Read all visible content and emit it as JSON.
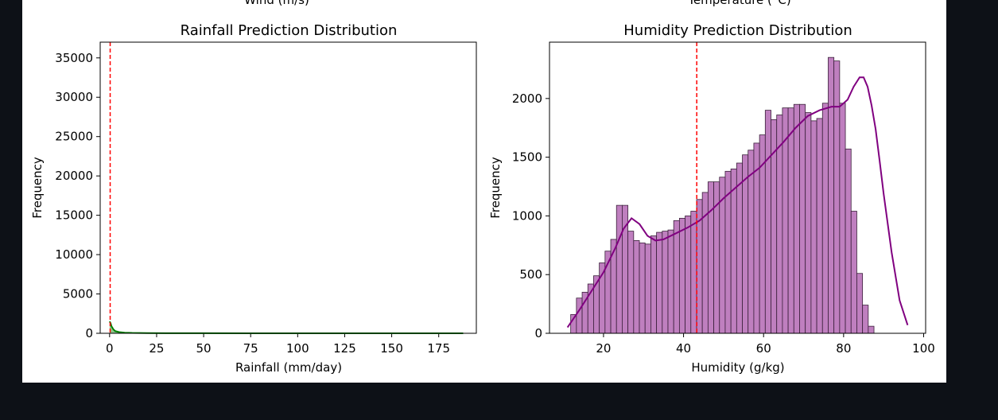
{
  "top_cutoff": {
    "left_label": "Wind (m/s)",
    "right_label": "Temperature (°C)"
  },
  "chart_data": [
    {
      "type": "histogram",
      "title": "Rainfall Prediction Distribution",
      "xlabel": "Rainfall (mm/day)",
      "ylabel": "Frequency",
      "xlim": [
        -5,
        195
      ],
      "ylim": [
        0,
        37000
      ],
      "xticks": [
        0,
        25,
        50,
        75,
        100,
        125,
        150,
        175
      ],
      "yticks": [
        0,
        5000,
        10000,
        15000,
        20000,
        25000,
        30000,
        35000
      ],
      "grid": false,
      "bar_color": "#008000",
      "kde_color": "#008000",
      "mean_line": {
        "x": 0.3,
        "color": "#ff0000",
        "style": "dashed"
      },
      "kde": {
        "x": [
          0,
          0.5,
          1,
          2,
          3,
          5,
          8,
          12,
          20,
          30,
          50,
          75,
          100,
          125,
          150,
          175,
          188
        ],
        "y": [
          1500,
          1300,
          900,
          500,
          280,
          150,
          80,
          45,
          25,
          15,
          8,
          5,
          3,
          2,
          2,
          1,
          1
        ]
      }
    },
    {
      "type": "histogram",
      "title": "Humidity Prediction Distribution",
      "xlabel": "Humidity (g/kg)",
      "ylabel": "Frequency",
      "xlim": [
        6.5,
        100.5
      ],
      "ylim": [
        0,
        2480
      ],
      "xticks": [
        20,
        40,
        60,
        80,
        100
      ],
      "yticks": [
        0,
        500,
        1000,
        1500,
        2000
      ],
      "grid": false,
      "bar_color": "#bf7fbf",
      "bar_edge_color": "#3a1f3a",
      "kde_color": "#800080",
      "mean_line": {
        "x": 43.3,
        "color": "#ff0000",
        "style": "dashed"
      },
      "bins": {
        "start": 11.8,
        "width": 1.43,
        "counts": [
          160,
          300,
          350,
          420,
          490,
          600,
          700,
          800,
          1090,
          1090,
          870,
          790,
          770,
          760,
          830,
          860,
          870,
          880,
          960,
          980,
          1000,
          1040,
          1140,
          1200,
          1290,
          1290,
          1330,
          1380,
          1400,
          1450,
          1520,
          1560,
          1620,
          1690,
          1900,
          1820,
          1860,
          1920,
          1920,
          1950,
          1950,
          1880,
          1810,
          1830,
          1960,
          2350,
          2320,
          1960,
          1570,
          1040,
          510,
          240,
          60
        ]
      },
      "kde": {
        "x": [
          11,
          14,
          17,
          20,
          23,
          25,
          27,
          29,
          31,
          33,
          35,
          38,
          41,
          44,
          47,
          50,
          53,
          56,
          59,
          62,
          65,
          68,
          71,
          74,
          77,
          79,
          81,
          82.5,
          84,
          85,
          86,
          87,
          88,
          89,
          90,
          92,
          94,
          96
        ],
        "y": [
          50,
          200,
          360,
          520,
          730,
          890,
          980,
          930,
          830,
          790,
          800,
          850,
          900,
          960,
          1050,
          1150,
          1240,
          1330,
          1410,
          1520,
          1630,
          1750,
          1850,
          1900,
          1930,
          1930,
          1990,
          2100,
          2180,
          2180,
          2100,
          1940,
          1740,
          1470,
          1190,
          690,
          280,
          70
        ]
      }
    }
  ]
}
